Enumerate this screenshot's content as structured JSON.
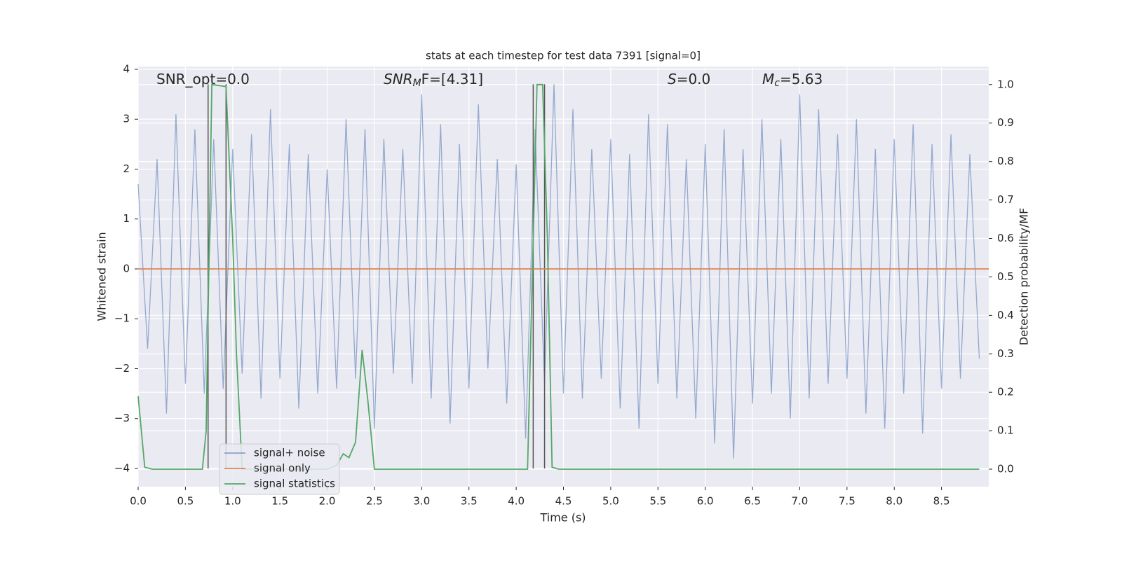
{
  "chart_data": {
    "type": "line",
    "title": "stats at each timestep for test data 7391 [signal=0]",
    "xlabel": "Time (s)",
    "ylabel": "Whitened strain",
    "y2label": "Detection probability/MF",
    "annotations": [
      [
        "SNR_opt=0.0"
      ],
      [
        "SNR",
        "M",
        "F=[4.31]"
      ],
      [
        "S",
        "=0.0"
      ],
      [
        "M",
        "c",
        "=5.63"
      ]
    ],
    "xlim": [
      0,
      9.0
    ],
    "ylim": [
      -4.365,
      4.056
    ],
    "y2lim": [
      -0.0455,
      1.047
    ],
    "xticks": [
      {
        "value": 0,
        "label": "0.0"
      },
      0.5,
      {
        "value": 1,
        "label": "1.0"
      },
      1.5,
      {
        "value": 2,
        "label": "2.0"
      },
      2.5,
      {
        "value": 3,
        "label": "3.0"
      },
      3.5,
      {
        "value": 4,
        "label": "4.0"
      },
      4.5,
      {
        "value": 5,
        "label": "5.0"
      },
      5.5,
      {
        "value": 6,
        "label": "6.0"
      },
      6.5,
      {
        "value": 7,
        "label": "7.0"
      },
      7.5,
      {
        "value": 8,
        "label": "8.0"
      },
      8.5
    ],
    "yticks": [
      {
        "value": -4,
        "label": "−4"
      },
      {
        "value": -3,
        "label": "−3"
      },
      {
        "value": -2,
        "label": "−2"
      },
      {
        "value": -1,
        "label": "−1"
      },
      0,
      1,
      2,
      3,
      4
    ],
    "y2ticks": [
      {
        "value": 0,
        "label": "0.0"
      },
      0.1,
      0.2,
      0.3,
      0.4,
      0.5,
      0.6,
      0.7,
      0.8,
      0.9,
      {
        "value": 1,
        "label": "1.0"
      }
    ],
    "grid": true,
    "legend": "lower left",
    "vlines": [
      0.74,
      0.93,
      4.18,
      4.3
    ],
    "vline_ylim": [
      -4,
      3.7
    ],
    "vline_color": "#555555",
    "series": [
      {
        "name": "signal+ noise",
        "color": "#4c72b0",
        "axis": "y",
        "x": [
          0.0,
          0.1,
          0.2,
          0.3,
          0.4,
          0.5,
          0.6,
          0.7,
          0.8,
          0.9,
          1.0,
          1.1,
          1.2,
          1.3,
          1.4,
          1.5,
          1.6,
          1.7,
          1.8,
          1.9,
          2.0,
          2.1,
          2.2,
          2.3,
          2.4,
          2.5,
          2.6,
          2.7,
          2.8,
          2.9,
          3.0,
          3.1,
          3.2,
          3.3,
          3.4,
          3.5,
          3.6,
          3.7,
          3.8,
          3.9,
          4.0,
          4.1,
          4.2,
          4.3,
          4.4,
          4.5,
          4.6,
          4.7,
          4.8,
          4.9,
          5.0,
          5.1,
          5.2,
          5.3,
          5.4,
          5.5,
          5.6,
          5.7,
          5.8,
          5.9,
          6.0,
          6.1,
          6.2,
          6.3,
          6.4,
          6.5,
          6.6,
          6.7,
          6.8,
          6.9,
          7.0,
          7.1,
          7.2,
          7.3,
          7.4,
          7.5,
          7.6,
          7.7,
          7.8,
          7.9,
          8.0,
          8.1,
          8.2,
          8.3,
          8.4,
          8.5,
          8.6,
          8.7,
          8.8,
          8.9
        ],
        "values": [
          1.7,
          -1.6,
          2.2,
          -2.9,
          3.1,
          -2.3,
          2.8,
          -2.5,
          2.6,
          -2.4,
          2.4,
          -2.1,
          2.7,
          -2.6,
          3.2,
          -2.2,
          2.5,
          -2.8,
          2.3,
          -2.5,
          2.0,
          -2.4,
          3.0,
          -2.2,
          2.8,
          -3.2,
          2.6,
          -2.1,
          2.4,
          -2.3,
          3.5,
          -2.6,
          2.9,
          -3.1,
          2.5,
          -2.4,
          3.3,
          -2.0,
          2.2,
          -2.7,
          2.1,
          -3.4,
          2.8,
          -2.3,
          3.7,
          -2.5,
          3.2,
          -2.6,
          2.4,
          -2.2,
          2.6,
          -2.8,
          2.3,
          -3.2,
          3.1,
          -2.3,
          2.9,
          -2.6,
          2.2,
          -3.0,
          2.5,
          -3.5,
          2.8,
          -3.8,
          2.4,
          -2.7,
          3.0,
          -2.5,
          2.6,
          -3.0,
          3.5,
          -2.6,
          3.2,
          -2.3,
          2.7,
          -2.2,
          3.0,
          -2.9,
          2.4,
          -3.2,
          2.6,
          -2.5,
          2.9,
          -3.3,
          2.5,
          -2.4,
          2.7,
          -2.2,
          2.3,
          -1.8
        ]
      },
      {
        "name": "signal only",
        "color": "#dd8452",
        "axis": "y",
        "x": [
          0,
          9.0
        ],
        "values": [
          0,
          0
        ]
      },
      {
        "name": "signal statistics",
        "color": "#55a868",
        "axis": "y2",
        "x": [
          0.0,
          0.07,
          0.15,
          0.68,
          0.72,
          0.78,
          0.93,
          1.0,
          1.04,
          1.1,
          2.0,
          2.1,
          2.17,
          2.23,
          2.3,
          2.37,
          2.43,
          2.5,
          4.12,
          4.22,
          4.28,
          4.33,
          4.38,
          4.45,
          8.9
        ],
        "values": [
          0.19,
          0.005,
          0,
          0,
          0.1,
          1.0,
          0.995,
          0.6,
          0.3,
          0,
          0,
          0.01,
          0.04,
          0.03,
          0.07,
          0.31,
          0.18,
          0,
          0,
          1.0,
          1.0,
          0.6,
          0.005,
          0,
          0
        ]
      }
    ]
  }
}
